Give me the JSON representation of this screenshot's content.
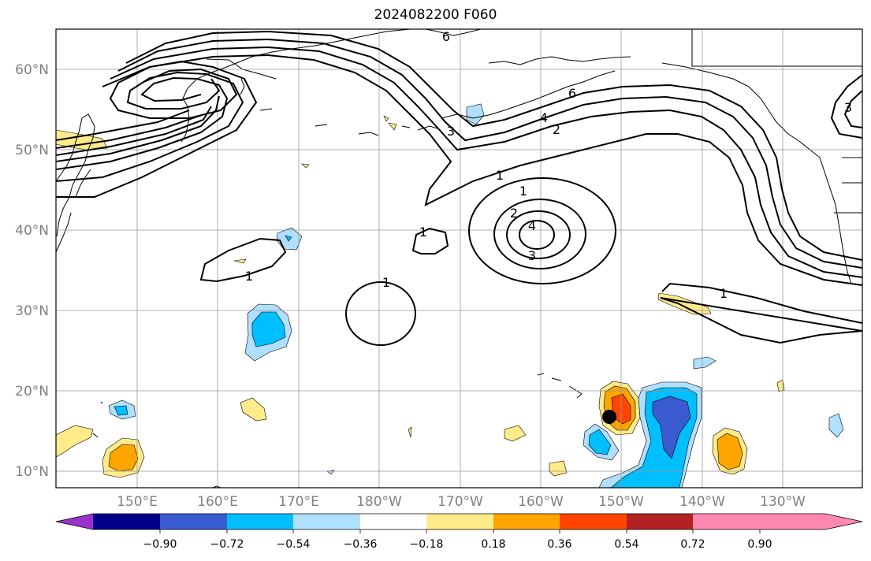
{
  "title": "2024082200 F060",
  "map": {
    "projection": "equirectangular",
    "lon_range": [
      140,
      250
    ],
    "lat_range": [
      8,
      65
    ],
    "lat_labels": [
      "60°N",
      "50°N",
      "40°N",
      "30°N",
      "20°N",
      "10°N"
    ],
    "lon_labels": [
      "150°E",
      "160°E",
      "170°E",
      "180°W",
      "170°W",
      "160°W",
      "150°W",
      "140°W",
      "130°W"
    ],
    "grid": true,
    "marker": {
      "name": "storm-center",
      "lon": 210.5,
      "lat": 16.7,
      "color": "#000000"
    }
  },
  "colorbar": {
    "orientation": "horizontal",
    "extend": "both",
    "tick_labels": [
      "−0.90",
      "−0.72",
      "−0.54",
      "−0.36",
      "−0.18",
      "0.18",
      "0.36",
      "0.54",
      "0.72",
      "0.90"
    ],
    "colors": [
      "#9932cc",
      "#00008b",
      "#3a5bcf",
      "#00bfff",
      "#b0e0ff",
      "#ffffff",
      "#ffeb8a",
      "#ffa500",
      "#ff4500",
      "#b22222",
      "#ff88b0"
    ]
  },
  "contour_labels": [
    "6",
    "3",
    "4",
    "2",
    "1",
    "1",
    "2",
    "4",
    "3",
    "1",
    "1",
    "1",
    "6",
    "3",
    "1"
  ]
}
